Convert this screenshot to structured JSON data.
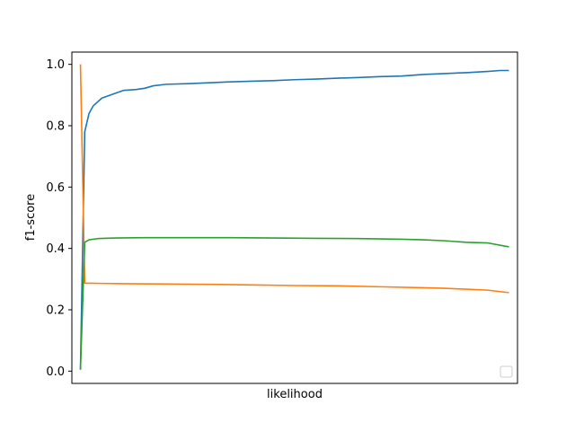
{
  "chart_data": {
    "type": "line",
    "xlabel": "likelihood",
    "ylabel": "f1-score",
    "ylim": [
      -0.04,
      1.04
    ],
    "xlim": [
      -0.02,
      1.02
    ],
    "x_ticks_visible": false,
    "y_ticks": [
      0.0,
      0.2,
      0.4,
      0.6,
      0.8,
      1.0
    ],
    "y_tick_labels": [
      "0.0",
      "0.2",
      "0.4",
      "0.6",
      "0.8",
      "1.0"
    ],
    "grid": false,
    "legend": "lower-right",
    "legend_entries": [],
    "series": [
      {
        "color": "#1f77b4",
        "points": [
          [
            0,
            0.005
          ],
          [
            0.01,
            0.78
          ],
          [
            0.02,
            0.84
          ],
          [
            0.03,
            0.865
          ],
          [
            0.05,
            0.89
          ],
          [
            0.08,
            0.905
          ],
          [
            0.1,
            0.915
          ],
          [
            0.13,
            0.918
          ],
          [
            0.15,
            0.922
          ],
          [
            0.17,
            0.93
          ],
          [
            0.2,
            0.935
          ],
          [
            0.25,
            0.937
          ],
          [
            0.3,
            0.94
          ],
          [
            0.35,
            0.943
          ],
          [
            0.4,
            0.945
          ],
          [
            0.45,
            0.947
          ],
          [
            0.5,
            0.95
          ],
          [
            0.55,
            0.952
          ],
          [
            0.6,
            0.955
          ],
          [
            0.65,
            0.957
          ],
          [
            0.7,
            0.96
          ],
          [
            0.75,
            0.962
          ],
          [
            0.8,
            0.967
          ],
          [
            0.85,
            0.97
          ],
          [
            0.9,
            0.973
          ],
          [
            0.95,
            0.977
          ],
          [
            0.98,
            0.98
          ],
          [
            1.0,
            0.98
          ]
        ]
      },
      {
        "color": "#ff7f0e",
        "points": [
          [
            0,
            1.0
          ],
          [
            0.01,
            0.287
          ],
          [
            0.05,
            0.286
          ],
          [
            0.1,
            0.285
          ],
          [
            0.2,
            0.284
          ],
          [
            0.3,
            0.283
          ],
          [
            0.4,
            0.281
          ],
          [
            0.5,
            0.279
          ],
          [
            0.6,
            0.278
          ],
          [
            0.7,
            0.275
          ],
          [
            0.8,
            0.272
          ],
          [
            0.85,
            0.27
          ],
          [
            0.9,
            0.267
          ],
          [
            0.95,
            0.264
          ],
          [
            1.0,
            0.256
          ]
        ]
      },
      {
        "color": "#2ca02c",
        "points": [
          [
            0,
            0.005
          ],
          [
            0.01,
            0.42
          ],
          [
            0.02,
            0.428
          ],
          [
            0.04,
            0.432
          ],
          [
            0.08,
            0.434
          ],
          [
            0.15,
            0.435
          ],
          [
            0.25,
            0.435
          ],
          [
            0.35,
            0.435
          ],
          [
            0.45,
            0.434
          ],
          [
            0.55,
            0.433
          ],
          [
            0.65,
            0.432
          ],
          [
            0.75,
            0.43
          ],
          [
            0.8,
            0.428
          ],
          [
            0.85,
            0.425
          ],
          [
            0.9,
            0.42
          ],
          [
            0.95,
            0.418
          ],
          [
            1.0,
            0.405
          ]
        ]
      }
    ]
  }
}
